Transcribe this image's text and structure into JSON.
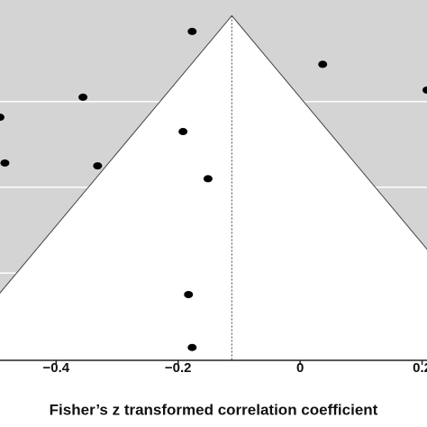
{
  "chart_data": {
    "type": "scatter",
    "x_label": "Fisher’s z transformed correlation coefficient",
    "x": [
      -0.177,
      0.037,
      -0.356,
      -0.492,
      0.208,
      -0.192,
      -0.484,
      -0.332,
      -0.151,
      -0.183,
      -0.177
    ],
    "values": [
      0.011,
      0.034,
      0.057,
      0.071,
      0.052,
      0.081,
      0.103,
      0.105,
      0.114,
      0.195,
      0.232
    ],
    "color": "#000000",
    "xlim": [
      -0.492,
      0.208
    ],
    "xticks": [
      {
        "value": -0.4,
        "label": "−0.4"
      },
      {
        "value": -0.2,
        "label": "−0.2"
      },
      0,
      0.2
    ],
    "ylim": [
      -0.011,
      0.241
    ],
    "y_inverted": true,
    "ygrid": [
      0.06,
      0.12,
      0.18
    ],
    "pooled_estimate": -0.112,
    "funnel_color": "#d4d4d4"
  }
}
